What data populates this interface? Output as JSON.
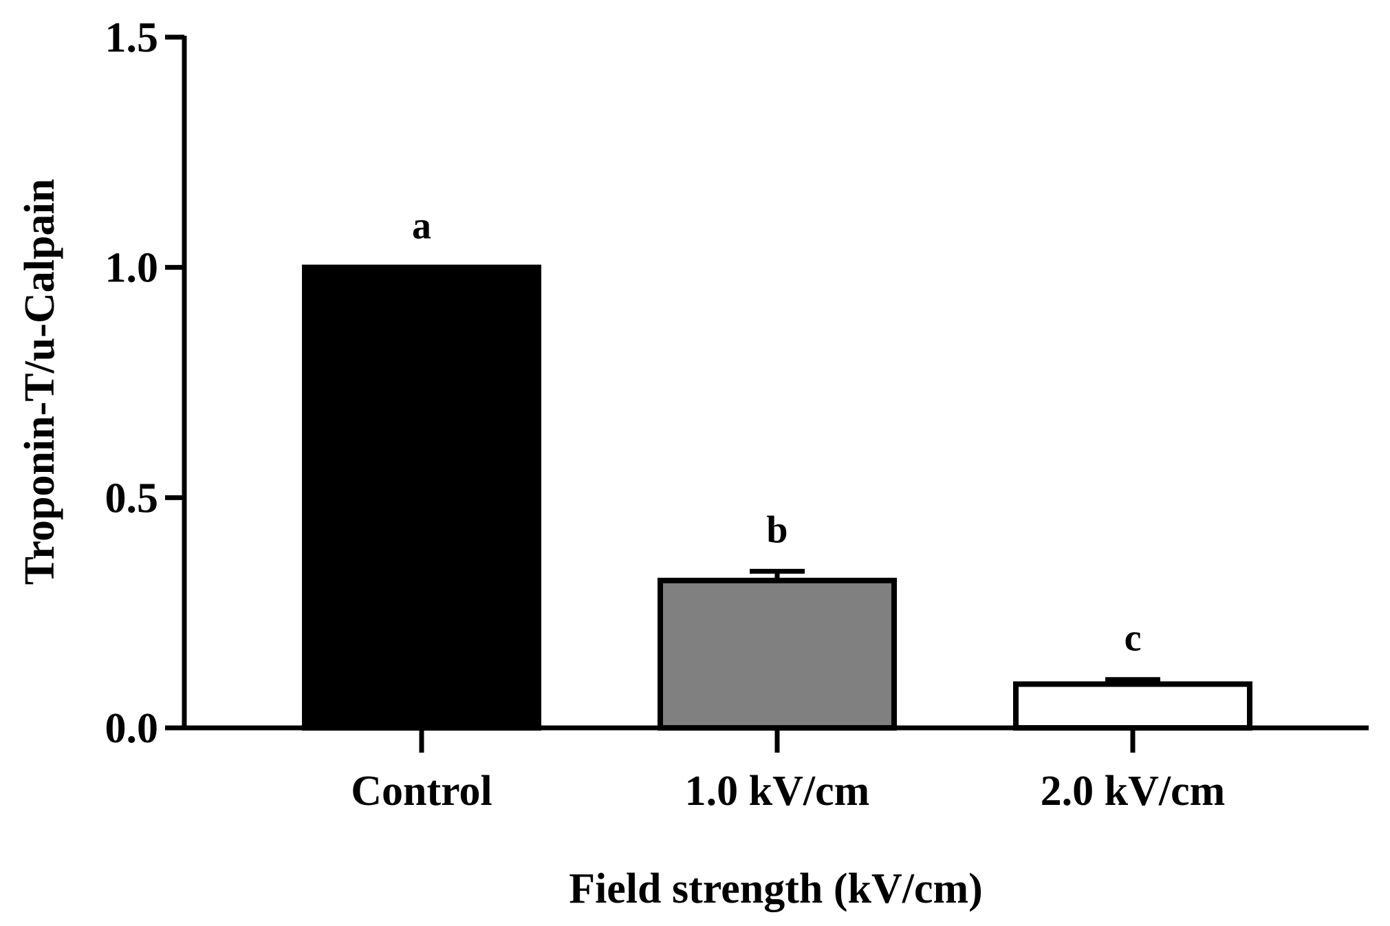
{
  "chart_data": {
    "type": "bar",
    "title": "",
    "xlabel": "Field strength (kV/cm)",
    "ylabel": "Troponin-T/u-Calpain",
    "ylim": [
      0,
      1.5
    ],
    "yticks": [
      "0.0",
      "0.5",
      "1.0",
      "1.5"
    ],
    "ytick_values": [
      0,
      0.5,
      1.0,
      1.5
    ],
    "categories": [
      "Control",
      "1.0 kV/cm",
      "2.0 kV/cm"
    ],
    "values": [
      1.0,
      0.32,
      0.095
    ],
    "errors": [
      0,
      0.02,
      0.01
    ],
    "significance_letters": [
      "a",
      "b",
      "c"
    ],
    "bar_fill_colors": [
      "#000000",
      "#808080",
      "#ffffff"
    ],
    "grid": false,
    "legend": "none"
  }
}
